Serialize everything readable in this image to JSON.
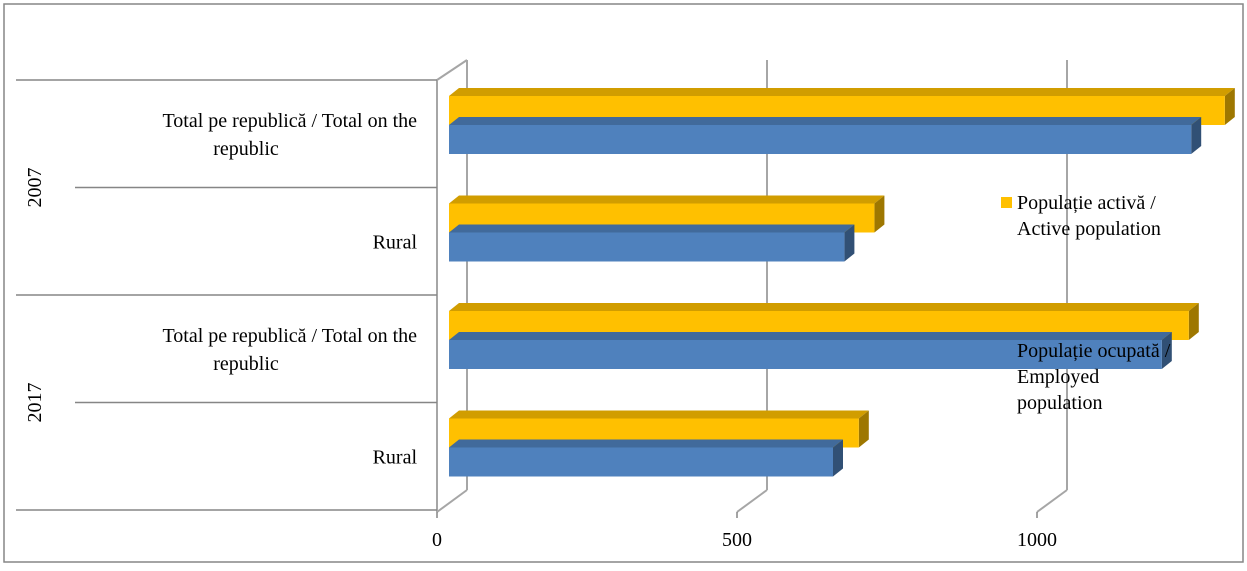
{
  "chart_data": {
    "type": "bar",
    "orientation": "horizontal",
    "style": "3d",
    "groups": [
      {
        "label": "2007",
        "categories": [
          {
            "label": "Total pe republică / Total on the republic",
            "line1": "Total pe republică / Total on the",
            "line2": "republic"
          },
          {
            "label": "Rural",
            "line1": "Rural",
            "line2": ""
          }
        ]
      },
      {
        "label": "2017",
        "categories": [
          {
            "label": "Total pe republică / Total on the republic",
            "line1": "Total pe republică / Total on the",
            "line2": "republic"
          },
          {
            "label": "Rural",
            "line1": "Rural",
            "line2": ""
          }
        ]
      }
    ],
    "series": [
      {
        "name": "Populație activă / Active population",
        "legend_lines": [
          "Populație activă /",
          "Active population"
        ],
        "color": "#FFC000",
        "values": [
          1313,
          729,
          1253,
          703
        ]
      },
      {
        "name": "Populație ocupată / Employed population",
        "legend_lines": [
          "Populație ocupată /",
          "Employed",
          "population"
        ],
        "color": "#4F81BD",
        "values": [
          1257,
          679,
          1208,
          660
        ]
      }
    ],
    "xlim": [
      0,
      1500
    ],
    "x_ticks": [
      0,
      500,
      1000,
      1500
    ],
    "grid": true,
    "legend_position": "right"
  }
}
